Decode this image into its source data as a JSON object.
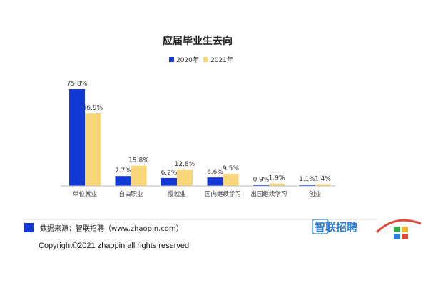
{
  "chart_data": {
    "type": "bar",
    "title": "应届毕业生去向",
    "categories": [
      "单位就业",
      "自由职业",
      "慢就业",
      "国内继续学习",
      "出国继续学习",
      "创业"
    ],
    "series": [
      {
        "name": "2020年",
        "color": "#1438d6",
        "values": [
          75.8,
          7.7,
          6.2,
          6.6,
          0.9,
          1.1
        ],
        "labels": [
          "75.8%",
          "7.7%",
          "6.2%",
          "6.6%",
          "0.9%",
          "1.1%"
        ]
      },
      {
        "name": "2021年",
        "color": "#f8d77a",
        "values": [
          56.9,
          15.8,
          12.8,
          9.5,
          1.9,
          1.4
        ],
        "labels": [
          "56.9%",
          "15.8%",
          "12.8%",
          "9.5%",
          "1.9%",
          "1.4%"
        ]
      }
    ],
    "xlabel": "",
    "ylabel": "",
    "ylim": [
      0,
      80
    ],
    "grid": false,
    "legend_position": "top-center"
  },
  "footer": {
    "source": "数据来源：智联招聘（www.zhaopin.com）",
    "brand": "智联招聘",
    "copyright": "Copyright©2021 zhaopin all rights reserved",
    "accent_color": "#1438d6"
  }
}
